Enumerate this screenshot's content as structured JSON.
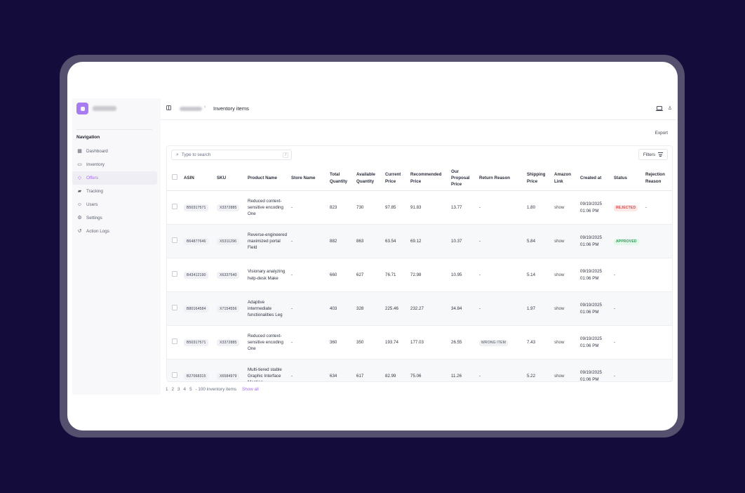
{
  "colors": {
    "background": "#140c3b",
    "frame": "#55506d",
    "accent": "#a46af0",
    "rejected": "#d84a4a",
    "approved": "#2f9a58"
  },
  "sidebar": {
    "nav_title": "Navigation",
    "items": [
      {
        "label": "Dashboard",
        "icon": "grid-icon"
      },
      {
        "label": "Inventory",
        "icon": "box-icon"
      },
      {
        "label": "Offers",
        "icon": "tag-icon",
        "active": true
      },
      {
        "label": "Tracking",
        "icon": "truck-icon"
      },
      {
        "label": "Users",
        "icon": "user-icon"
      },
      {
        "label": "Settings",
        "icon": "gear-icon"
      },
      {
        "label": "Action Logs",
        "icon": "history-icon"
      }
    ]
  },
  "header": {
    "breadcrumb_separator": "›",
    "title": "Inventory items"
  },
  "toolbar": {
    "export_label": "Export",
    "search_placeholder": "Type to search",
    "search_shortcut": "/",
    "filters_label": "Filters"
  },
  "table": {
    "headers": [
      "ASIN",
      "SKU",
      "Product Name",
      "Store Name",
      "Total Quantity",
      "Available Quantity",
      "Current Price",
      "Recommended Price",
      "Our Proposal Price",
      "Return Reason",
      "Shipping Price",
      "Amazon Link",
      "Created at",
      "Status",
      "Rejection Reason"
    ],
    "rows": [
      {
        "asin": "B50317571",
        "sku": "X3372885",
        "product": "Reduced context-sensitive encoding One",
        "store": "-",
        "total": "823",
        "available": "730",
        "current": "97.85",
        "recommended": "91.83",
        "proposal": "13.77",
        "return_reason": "-",
        "shipping": "1.80",
        "link": "show",
        "created": "09/19/2025 01:06 PM",
        "status": "REJECTED",
        "rejection": "-"
      },
      {
        "asin": "B64877646",
        "sku": "X5311296",
        "product": "Reverse-engineered maximized portal Field",
        "store": "-",
        "total": "882",
        "available": "863",
        "current": "63.54",
        "recommended": "69.12",
        "proposal": "10.37",
        "return_reason": "-",
        "shipping": "5.84",
        "link": "show",
        "created": "09/19/2025 01:06 PM",
        "status": "APPROVED",
        "rejection": ""
      },
      {
        "asin": "B43412190",
        "sku": "X6337540",
        "product": "Visionary analyzing help-desk Make",
        "store": "-",
        "total": "660",
        "available": "627",
        "current": "76.71",
        "recommended": "72.98",
        "proposal": "10.95",
        "return_reason": "-",
        "shipping": "5.14",
        "link": "show",
        "created": "09/19/2025 01:06 PM",
        "status": "-",
        "rejection": ""
      },
      {
        "asin": "B80164584",
        "sku": "X7154556",
        "product": "Adaptive intermediate functionalities Leg",
        "store": "-",
        "total": "403",
        "available": "328",
        "current": "225.46",
        "recommended": "232.27",
        "proposal": "34.84",
        "return_reason": "-",
        "shipping": "1.97",
        "link": "show",
        "created": "09/19/2025 01:06 PM",
        "status": "-",
        "rejection": ""
      },
      {
        "asin": "B50317571",
        "sku": "X3372885",
        "product": "Reduced context-sensitive encoding One",
        "store": "-",
        "total": "360",
        "available": "350",
        "current": "193.74",
        "recommended": "177.03",
        "proposal": "26.55",
        "return_reason": "WRONG ITEM",
        "shipping": "7.43",
        "link": "show",
        "created": "09/19/2025 01:06 PM",
        "status": "-",
        "rejection": ""
      },
      {
        "asin": "B27068315",
        "sku": "X6584979",
        "product": "Multi-tiered stable Graphic Interface Mention",
        "store": "-",
        "total": "634",
        "available": "617",
        "current": "82.99",
        "recommended": "75.06",
        "proposal": "11.26",
        "return_reason": "-",
        "shipping": "5.22",
        "link": "show",
        "created": "09/19/2025 01:06 PM",
        "status": "-",
        "rejection": ""
      }
    ]
  },
  "pagination": {
    "pages": [
      "1",
      "2",
      "3",
      "4",
      "5"
    ],
    "summary": "- 100 inventory items",
    "show_all": "Show all"
  }
}
